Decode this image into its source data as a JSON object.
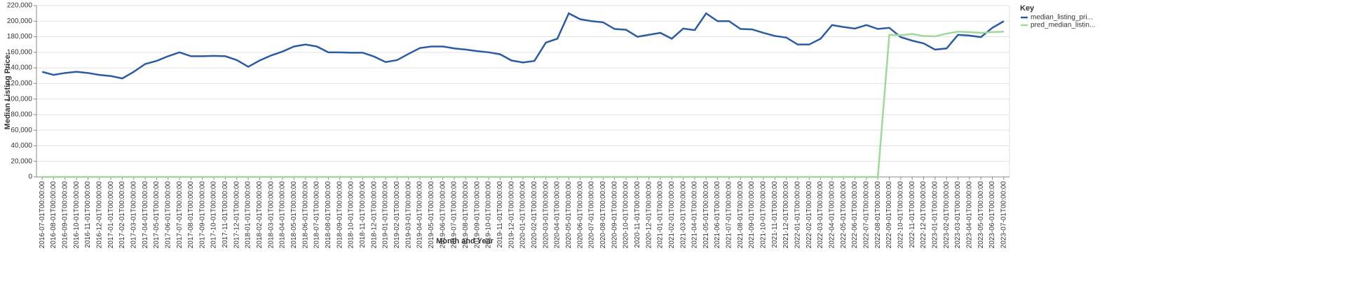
{
  "chart_data": {
    "type": "line",
    "x_label": "Month and Year",
    "y_label": "Median Listing Price:",
    "legend_title": "Key",
    "legend_position": "right",
    "grid": true,
    "categories": [
      "2016-07-01T00:00:00",
      "2016-08-01T00:00:00",
      "2016-09-01T00:00:00",
      "2016-10-01T00:00:00",
      "2016-11-01T00:00:00",
      "2016-12-01T00:00:00",
      "2017-01-01T00:00:00",
      "2017-02-01T00:00:00",
      "2017-03-01T00:00:00",
      "2017-04-01T00:00:00",
      "2017-05-01T00:00:00",
      "2017-06-01T00:00:00",
      "2017-07-01T00:00:00",
      "2017-08-01T00:00:00",
      "2017-09-01T00:00:00",
      "2017-10-01T00:00:00",
      "2017-11-01T00:00:00",
      "2017-12-01T00:00:00",
      "2018-01-01T00:00:00",
      "2018-02-01T00:00:00",
      "2018-03-01T00:00:00",
      "2018-04-01T00:00:00",
      "2018-05-01T00:00:00",
      "2018-06-01T00:00:00",
      "2018-07-01T00:00:00",
      "2018-08-01T00:00:00",
      "2018-09-01T00:00:00",
      "2018-10-01T00:00:00",
      "2018-11-01T00:00:00",
      "2018-12-01T00:00:00",
      "2019-01-01T00:00:00",
      "2019-02-01T00:00:00",
      "2019-03-01T00:00:00",
      "2019-04-01T00:00:00",
      "2019-05-01T00:00:00",
      "2019-06-01T00:00:00",
      "2019-07-01T00:00:00",
      "2019-08-01T00:00:00",
      "2019-09-01T00:00:00",
      "2019-10-01T00:00:00",
      "2019-11-01T00:00:00",
      "2019-12-01T00:00:00",
      "2020-01-01T00:00:00",
      "2020-02-01T00:00:00",
      "2020-03-01T00:00:00",
      "2020-04-01T00:00:00",
      "2020-05-01T00:00:00",
      "2020-06-01T00:00:00",
      "2020-07-01T00:00:00",
      "2020-08-01T00:00:00",
      "2020-09-01T00:00:00",
      "2020-10-01T00:00:00",
      "2020-11-01T00:00:00",
      "2020-12-01T00:00:00",
      "2021-01-01T00:00:00",
      "2021-02-01T00:00:00",
      "2021-03-01T00:00:00",
      "2021-04-01T00:00:00",
      "2021-05-01T00:00:00",
      "2021-06-01T00:00:00",
      "2021-07-01T00:00:00",
      "2021-08-01T00:00:00",
      "2021-09-01T00:00:00",
      "2021-10-01T00:00:00",
      "2021-11-01T00:00:00",
      "2021-12-01T00:00:00",
      "2022-01-01T00:00:00",
      "2022-02-01T00:00:00",
      "2022-03-01T00:00:00",
      "2022-04-01T00:00:00",
      "2022-05-01T00:00:00",
      "2022-06-01T00:00:00",
      "2022-07-01T00:00:00",
      "2022-08-01T00:00:00",
      "2022-09-01T00:00:00",
      "2022-10-01T00:00:00",
      "2022-11-01T00:00:00",
      "2022-12-01T00:00:00",
      "2023-01-01T00:00:00",
      "2023-02-01T00:00:00",
      "2023-03-01T00:00:00",
      "2023-04-01T00:00:00",
      "2023-05-01T00:00:00",
      "2023-06-01T00:00:00",
      "2023-07-01T00:00:00"
    ],
    "series": [
      {
        "name": "median_listing_pri...",
        "color": "#2c5b9e",
        "values": [
          135000,
          131000,
          133500,
          135000,
          133500,
          131000,
          129500,
          126500,
          135000,
          145000,
          149000,
          155000,
          160000,
          155000,
          155000,
          155500,
          155000,
          150000,
          141500,
          149500,
          156000,
          161000,
          167500,
          170000,
          167500,
          160000,
          160000,
          159500,
          159500,
          154500,
          147500,
          150000,
          158000,
          165500,
          167500,
          167500,
          165000,
          163500,
          161500,
          160000,
          157500,
          149500,
          146900,
          149000,
          172500,
          177500,
          210000,
          202500,
          200000,
          198500,
          190000,
          189000,
          180000,
          182500,
          185000,
          177500,
          190500,
          188500,
          210000,
          200000,
          200000,
          190000,
          189500,
          185000,
          181000,
          179000,
          170000,
          170000,
          177500,
          195000,
          192500,
          190500,
          195000,
          190000,
          191500,
          179500,
          175000,
          171500,
          163500,
          165000,
          182500,
          181500,
          179500,
          191500,
          199900
        ]
      },
      {
        "name": "pred_median_listin...",
        "color": "#9fd89a",
        "values": [
          0,
          0,
          0,
          0,
          0,
          0,
          0,
          0,
          0,
          0,
          0,
          0,
          0,
          0,
          0,
          0,
          0,
          0,
          0,
          0,
          0,
          0,
          0,
          0,
          0,
          0,
          0,
          0,
          0,
          0,
          0,
          0,
          0,
          0,
          0,
          0,
          0,
          0,
          0,
          0,
          0,
          0,
          0,
          0,
          0,
          0,
          0,
          0,
          0,
          0,
          0,
          0,
          0,
          0,
          0,
          0,
          0,
          0,
          0,
          0,
          0,
          0,
          0,
          0,
          0,
          0,
          0,
          0,
          0,
          0,
          0,
          0,
          0,
          0,
          182500,
          182000,
          183500,
          181000,
          180500,
          184000,
          186500,
          186000,
          185000,
          186000,
          186500
        ]
      }
    ],
    "ylim": [
      0,
      220000
    ],
    "yticks": [
      0,
      {
        "value": 20000,
        "label": "20,000"
      },
      {
        "value": 40000,
        "label": "40,000"
      },
      {
        "value": 60000,
        "label": "60,000"
      },
      {
        "value": 80000,
        "label": "80,000"
      },
      {
        "value": 100000,
        "label": "100,000"
      },
      {
        "value": 120000,
        "label": "120,000"
      },
      {
        "value": 140000,
        "label": "140,000"
      },
      {
        "value": 160000,
        "label": "160,000"
      },
      {
        "value": 180000,
        "label": "180,000"
      },
      {
        "value": 200000,
        "label": "200,000"
      },
      {
        "value": 220000,
        "label": "220,000"
      }
    ]
  }
}
